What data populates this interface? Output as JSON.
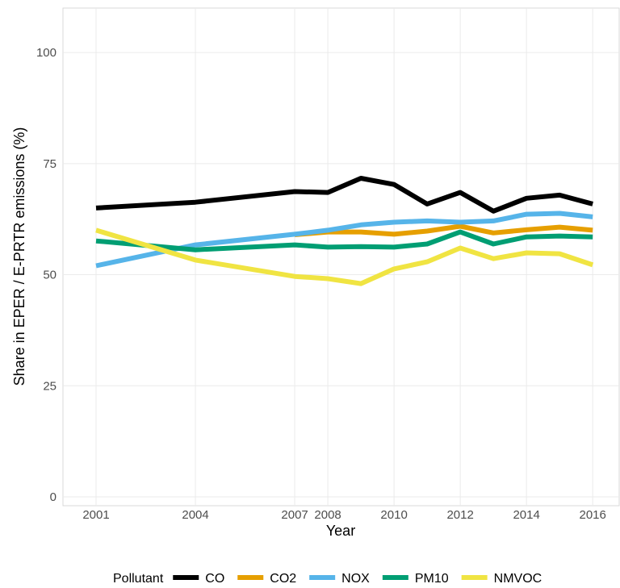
{
  "chart_data": {
    "type": "line",
    "x": [
      2001,
      2004,
      2007,
      2008,
      2009,
      2010,
      2011,
      2012,
      2013,
      2014,
      2015,
      2016
    ],
    "xlabel": "Year",
    "ylabel": "Share in EPER / E-PRTR emissions (%)",
    "legend_title": "Pollutant",
    "legend": "bottom",
    "grid": true,
    "xlim": [
      2000,
      2016.8
    ],
    "xticks": [
      2001,
      2004,
      2007,
      2008,
      2010,
      2012,
      2014,
      2016
    ],
    "ylim": [
      -2,
      110
    ],
    "yticks": [
      0,
      25,
      50,
      75,
      100
    ],
    "series": [
      {
        "name": "CO",
        "color": "#000000",
        "values": [
          65.0,
          66.3,
          68.7,
          68.5,
          71.7,
          70.3,
          65.9,
          68.5,
          64.3,
          67.2,
          67.9,
          65.9
        ]
      },
      {
        "name": "CO2",
        "color": "#E69F00",
        "values": [
          null,
          null,
          59.0,
          59.6,
          59.6,
          59.1,
          59.8,
          60.9,
          59.4,
          60.1,
          60.7,
          60.0
        ]
      },
      {
        "name": "NOX",
        "color": "#56B4E9",
        "values": [
          52.0,
          56.7,
          59.1,
          60.0,
          61.2,
          61.8,
          62.1,
          61.8,
          62.1,
          63.6,
          63.8,
          63.0
        ]
      },
      {
        "name": "PM10",
        "color": "#009E73",
        "values": [
          57.6,
          55.6,
          56.7,
          56.2,
          56.3,
          56.2,
          56.9,
          59.6,
          56.9,
          58.5,
          58.7,
          58.5
        ]
      },
      {
        "name": "NMVOC",
        "color": "#F0E442",
        "values": [
          60.0,
          53.3,
          49.6,
          49.1,
          48.0,
          51.3,
          52.9,
          56.0,
          53.6,
          54.9,
          54.7,
          52.2
        ]
      }
    ]
  }
}
